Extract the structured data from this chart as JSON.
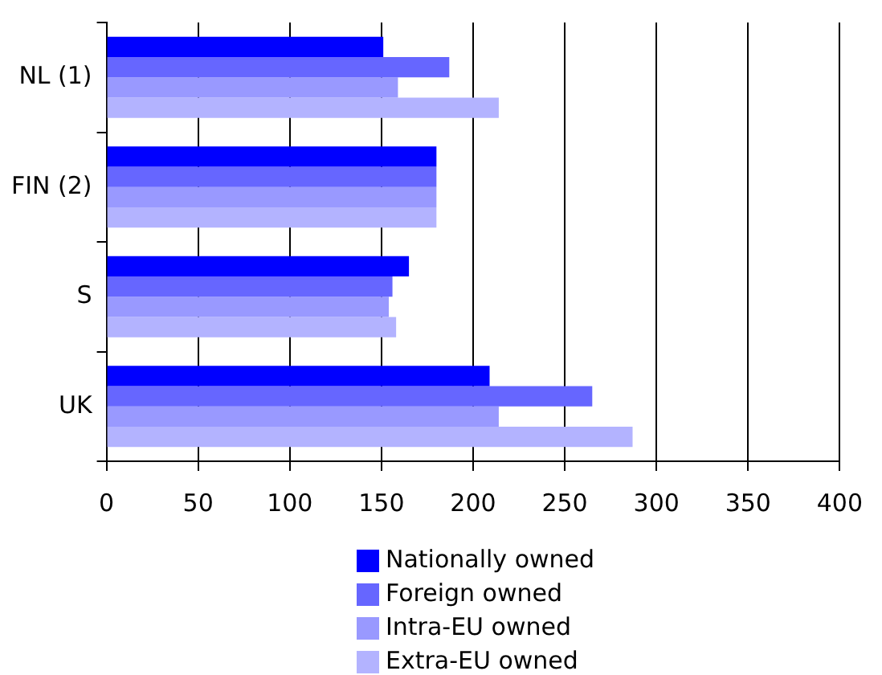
{
  "chart_data": {
    "type": "bar",
    "orientation": "horizontal",
    "categories": [
      "NL (1)",
      "FIN (2)",
      "S",
      "UK"
    ],
    "series": [
      {
        "name": "Nationally owned",
        "color": "#0000ff",
        "values": [
          151,
          180,
          165,
          209
        ]
      },
      {
        "name": "Foreign owned",
        "color": "#6666ff",
        "values": [
          187,
          180,
          156,
          265
        ]
      },
      {
        "name": "Intra-EU owned",
        "color": "#9999ff",
        "values": [
          159,
          180,
          154,
          214
        ]
      },
      {
        "name": "Extra-EU owned",
        "color": "#b3b3ff",
        "values": [
          214,
          180,
          158,
          287
        ]
      }
    ],
    "xlim": [
      0,
      400
    ],
    "xticks": [
      0,
      50,
      100,
      150,
      200,
      250,
      300,
      350,
      400
    ],
    "grid": "x",
    "legend": "bottom"
  }
}
